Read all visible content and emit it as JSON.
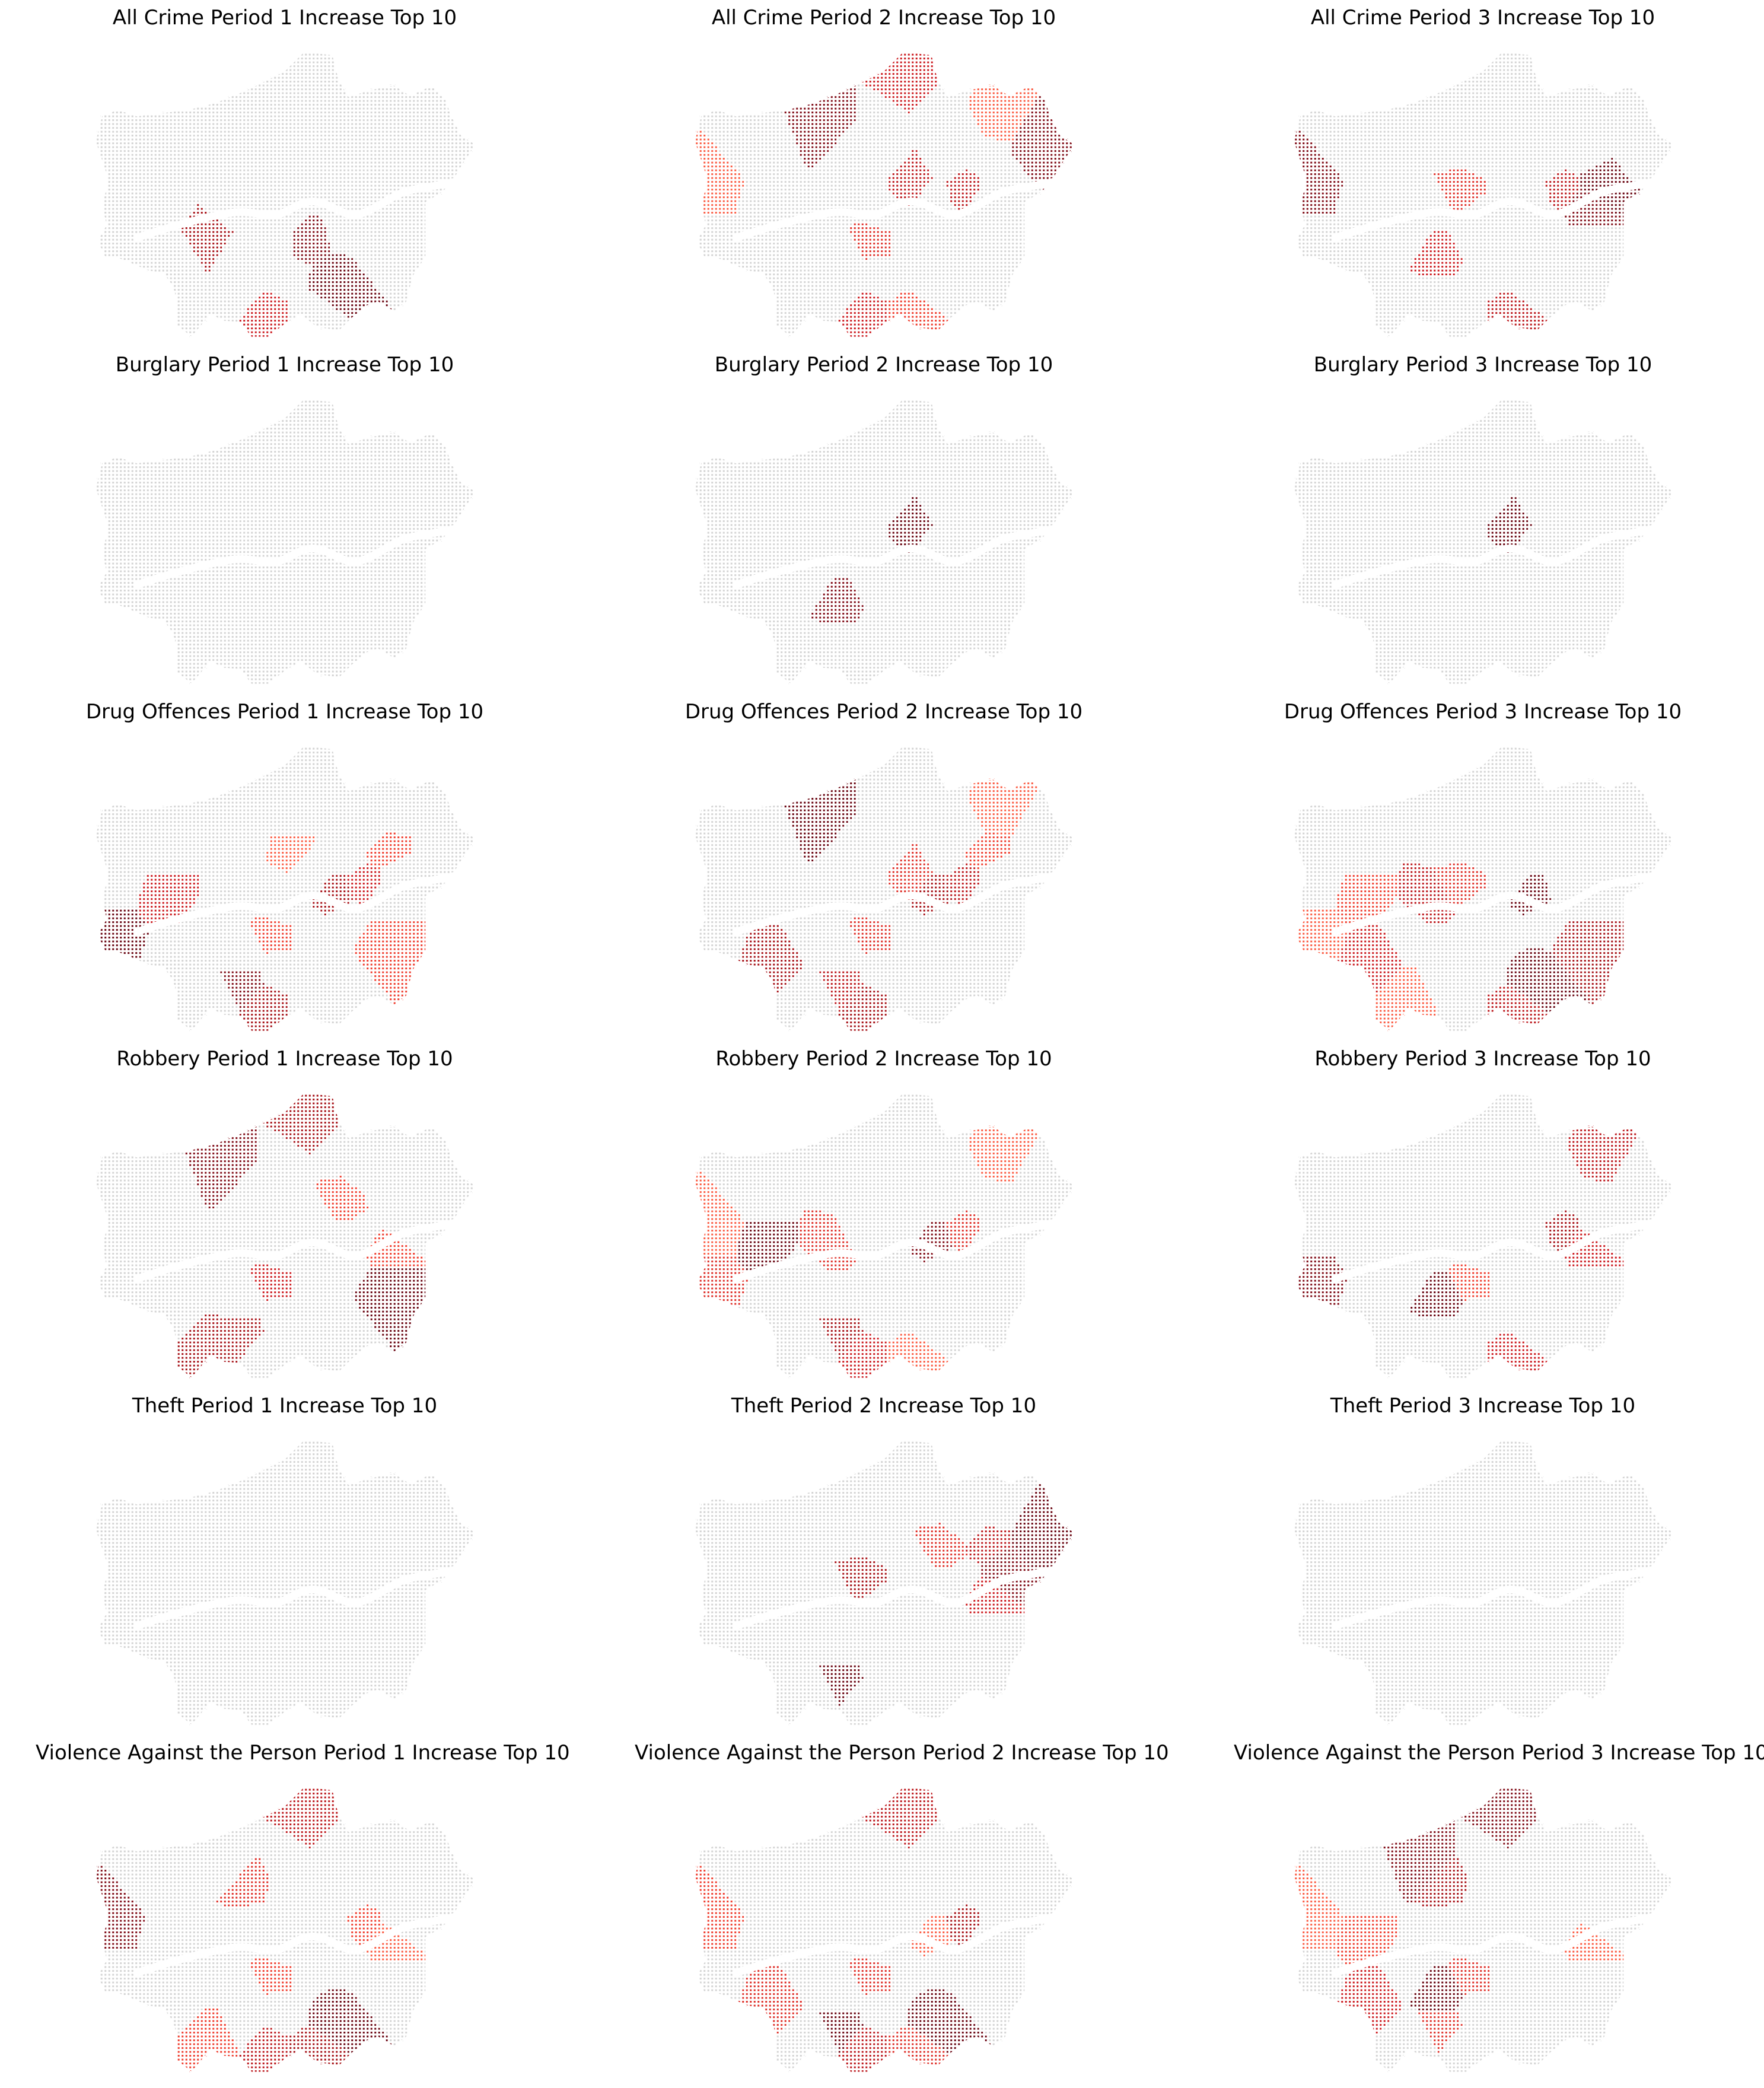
{
  "colors": {
    "none": "#d3d3d3",
    "border": "#ffffff",
    "rank_1": "#67000d",
    "rank_2": "#7f0a15",
    "rank_3": "#a50f15",
    "rank_4": "#bb151a",
    "rank_5": "#cb181d",
    "rank_6": "#de2d26",
    "rank_7": "#ef3b2c",
    "rank_8": "#fb5a41"
  },
  "panels": [
    {
      "title": "All Crime Period 1 Increase Top 10",
      "highlights": [
        [
          "14",
          3
        ],
        [
          "26",
          2
        ],
        [
          "18",
          1
        ],
        [
          "22",
          5
        ]
      ]
    },
    {
      "title": "All Crime Period 2 Increase Top 10",
      "highlights": [
        [
          "1",
          2
        ],
        [
          "2",
          5
        ],
        [
          "3",
          8
        ],
        [
          "13",
          8
        ],
        [
          "10",
          4
        ],
        [
          "29",
          2
        ],
        [
          "31",
          4
        ],
        [
          "19",
          6
        ],
        [
          "22",
          5
        ],
        [
          "23",
          7
        ]
      ]
    },
    {
      "title": "All Crime Period 3 Increase Top 10",
      "highlights": [
        [
          "3",
          2
        ],
        [
          "11",
          6
        ],
        [
          "30",
          2
        ],
        [
          "31",
          4
        ],
        [
          "28",
          1
        ],
        [
          "16",
          5
        ],
        [
          "23",
          4
        ]
      ]
    },
    {
      "title": "Burglary Period 1 Increase Top 10",
      "highlights": []
    },
    {
      "title": "Burglary Period 2 Increase Top 10",
      "highlights": [
        [
          "10",
          1
        ],
        [
          "16",
          2
        ]
      ]
    },
    {
      "title": "Burglary Period 3 Increase Top 10",
      "highlights": [
        [
          "10",
          1
        ]
      ]
    },
    {
      "title": "Drug Offences Period 1 Increase Top 10",
      "highlights": [
        [
          "4",
          5
        ],
        [
          "6",
          8
        ],
        [
          "35",
          1
        ],
        [
          "31",
          5
        ],
        [
          "32",
          7
        ],
        [
          "17",
          3
        ],
        [
          "19",
          7
        ],
        [
          "20",
          2
        ],
        [
          "22",
          3
        ],
        [
          "24",
          7
        ]
      ]
    },
    {
      "title": "Drug Offences Period 2 Increase Top 10",
      "highlights": [
        [
          "1",
          1
        ],
        [
          "15",
          3
        ],
        [
          "13",
          8
        ],
        [
          "10",
          6
        ],
        [
          "31",
          4
        ],
        [
          "32",
          7
        ],
        [
          "17",
          3
        ],
        [
          "19",
          6
        ],
        [
          "20",
          4
        ],
        [
          "22",
          3
        ]
      ]
    },
    {
      "title": "Drug Offences Period 3 Increase Top 10",
      "highlights": [
        [
          "4",
          7
        ],
        [
          "5",
          4
        ],
        [
          "35",
          8
        ],
        [
          "11",
          6
        ],
        [
          "17",
          1
        ],
        [
          "15",
          5
        ],
        [
          "21",
          8
        ],
        [
          "18",
          1
        ],
        [
          "23",
          4
        ],
        [
          "24",
          3
        ]
      ]
    },
    {
      "title": "Robbery Period 1 Increase Top 10",
      "highlights": [
        [
          "1",
          2
        ],
        [
          "2",
          3
        ],
        [
          "12",
          7
        ],
        [
          "30",
          7
        ],
        [
          "19",
          5
        ],
        [
          "20",
          3
        ],
        [
          "21",
          3
        ],
        [
          "24",
          1
        ]
      ]
    },
    {
      "title": "Robbery Period 2 Increase Top 10",
      "highlights": [
        [
          "4",
          1
        ],
        [
          "5",
          6
        ],
        [
          "3",
          8
        ],
        [
          "13",
          8
        ],
        [
          "17",
          2
        ],
        [
          "35",
          6
        ],
        [
          "31",
          6
        ],
        [
          "20",
          3
        ],
        [
          "23",
          8
        ],
        [
          "22",
          5
        ]
      ]
    },
    {
      "title": "Robbery Period 3 Increase Top 10",
      "highlights": [
        [
          "13",
          4
        ],
        [
          "35",
          2
        ],
        [
          "30",
          5
        ],
        [
          "31",
          3
        ],
        [
          "19",
          7
        ],
        [
          "16",
          1
        ],
        [
          "23",
          5
        ]
      ]
    },
    {
      "title": "Theft Period 1 Increase Top 10",
      "highlights": []
    },
    {
      "title": "Theft Period 2 Increase Top 10",
      "highlights": [
        [
          "12",
          6
        ],
        [
          "11",
          3
        ],
        [
          "32",
          4
        ],
        [
          "28",
          2
        ],
        [
          "30",
          5
        ],
        [
          "20",
          1
        ],
        [
          "29",
          1
        ]
      ]
    },
    {
      "title": "Theft Period 3 Increase Top 10",
      "highlights": []
    },
    {
      "title": "Violence Against the Person Period 1 Increase Top 10",
      "highlights": [
        [
          "2",
          4
        ],
        [
          "3",
          2
        ],
        [
          "33",
          6
        ],
        [
          "30",
          8
        ],
        [
          "31",
          7
        ],
        [
          "19",
          7
        ],
        [
          "21",
          7
        ],
        [
          "18",
          1
        ],
        [
          "22",
          4
        ],
        [
          "23",
          3
        ]
      ]
    },
    {
      "title": "Violence Against the Person Period 2 Increase Top 10",
      "highlights": [
        [
          "2",
          4
        ],
        [
          "3",
          7
        ],
        [
          "15",
          6
        ],
        [
          "17",
          8
        ],
        [
          "20",
          1
        ],
        [
          "18",
          1
        ],
        [
          "22",
          4
        ],
        [
          "23",
          6
        ],
        [
          "31",
          3
        ],
        [
          "19",
          6
        ]
      ]
    },
    {
      "title": "Violence Against the Person Period 3 Increase Top 10",
      "highlights": [
        [
          "4",
          7
        ],
        [
          "1",
          2
        ],
        [
          "2",
          2
        ],
        [
          "3",
          8
        ],
        [
          "15",
          5
        ],
        [
          "33",
          3
        ],
        [
          "30",
          8
        ],
        [
          "19",
          6
        ],
        [
          "20",
          6
        ],
        [
          "16",
          1
        ]
      ]
    }
  ]
}
